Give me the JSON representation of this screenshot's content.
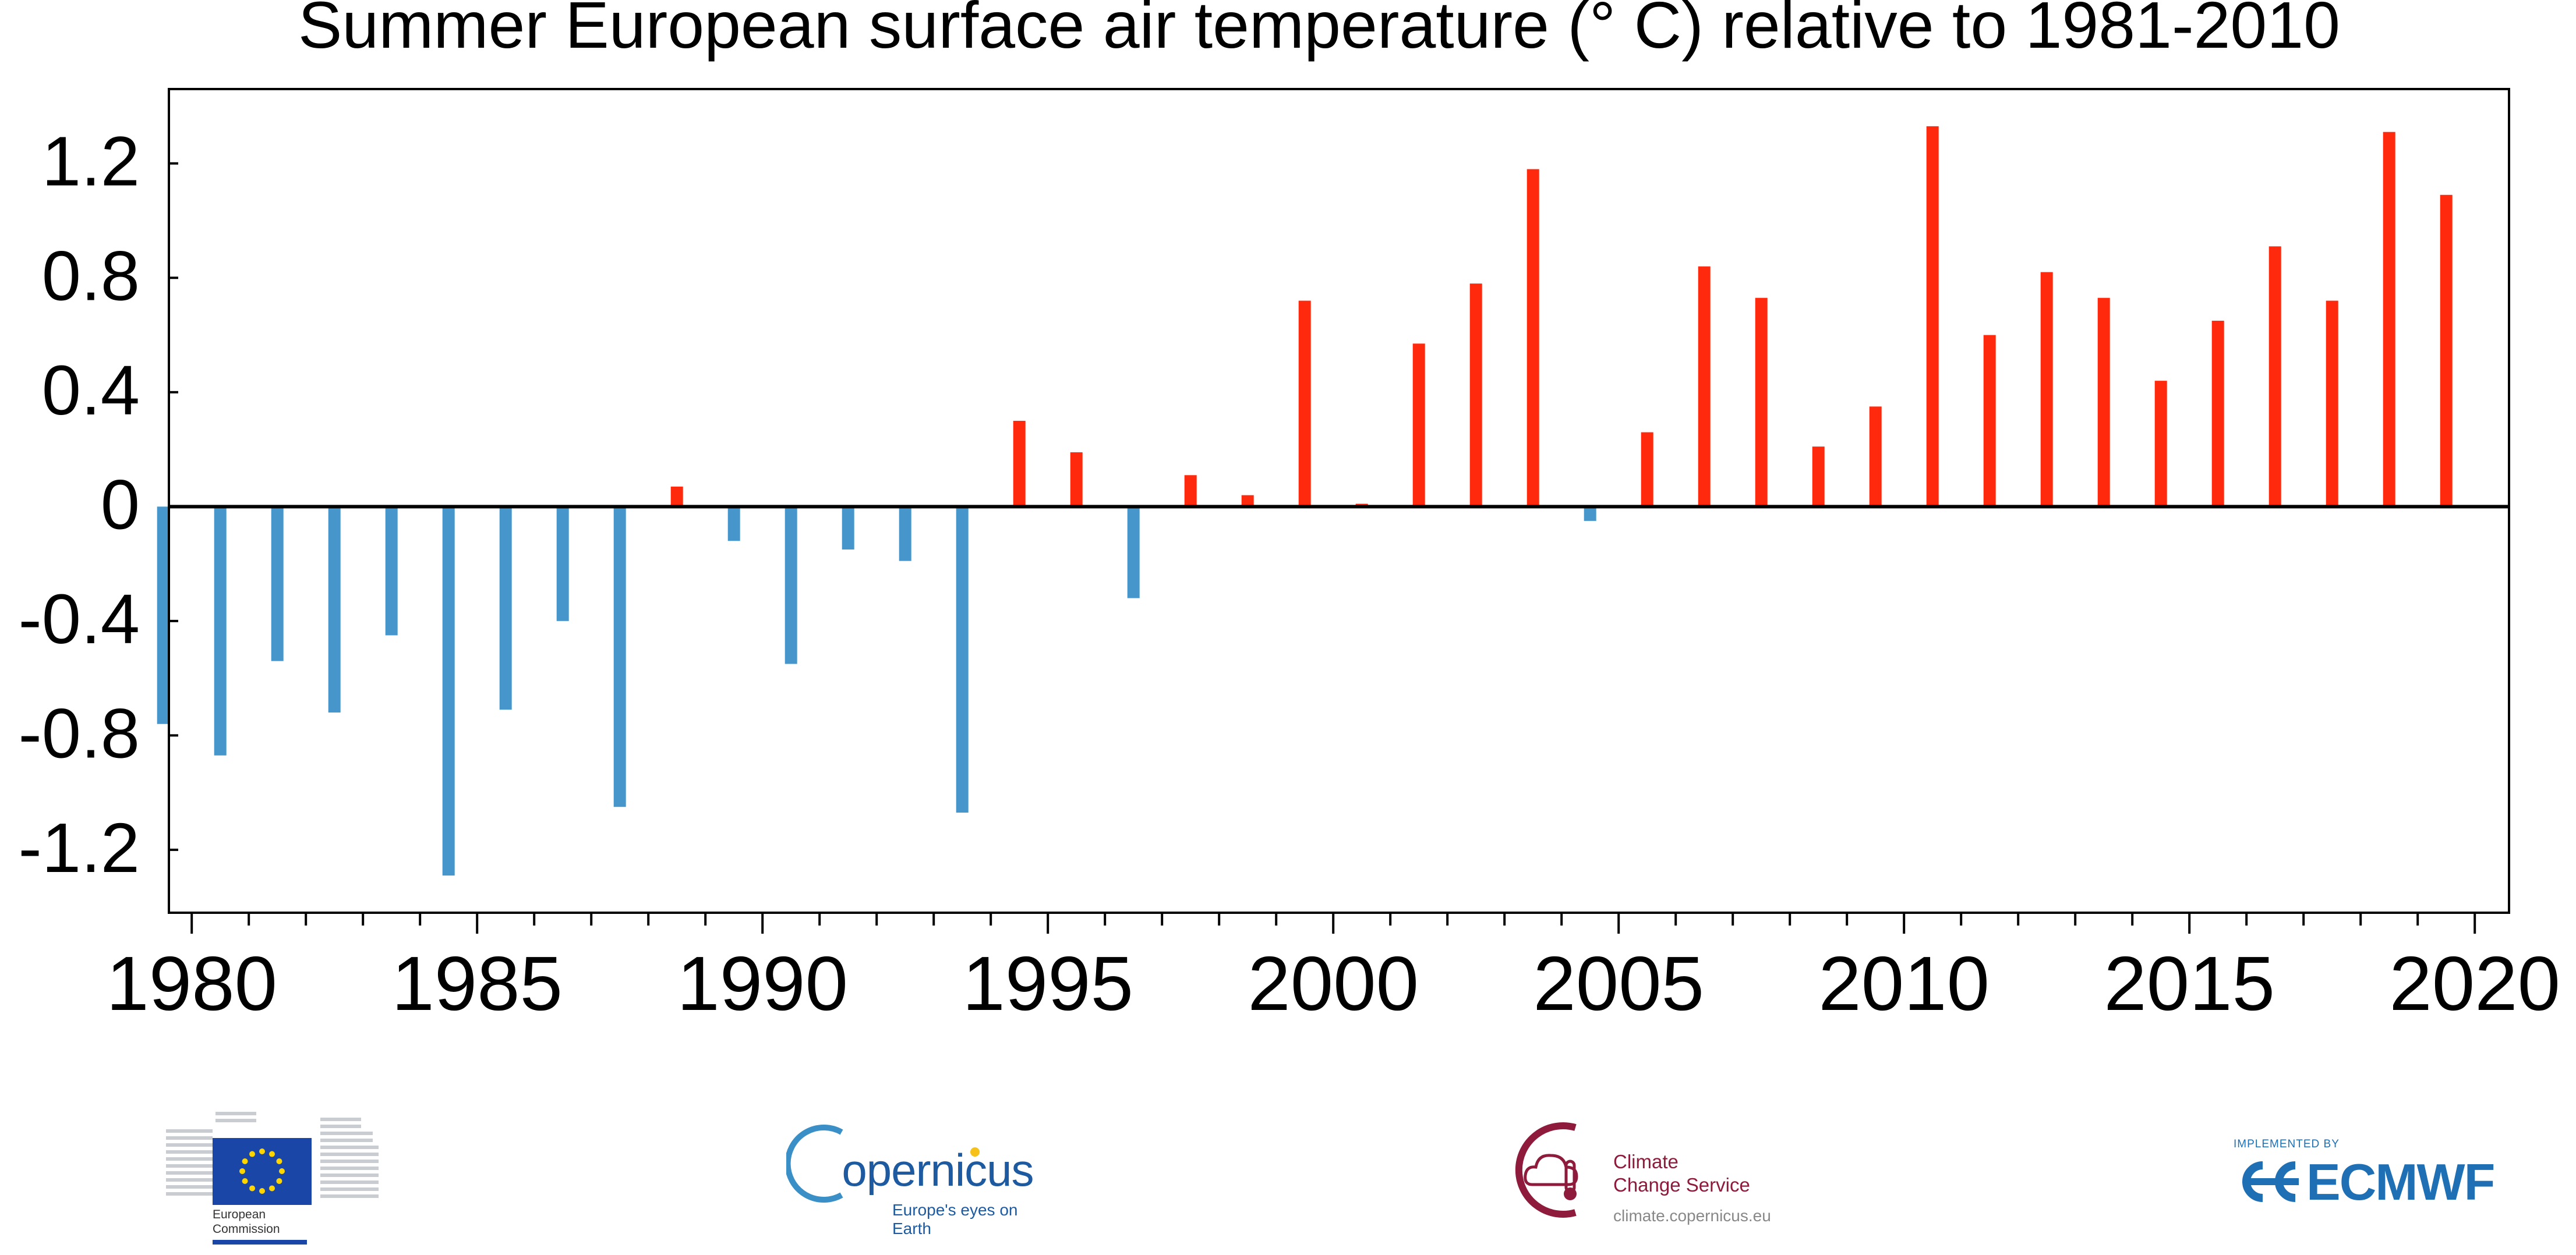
{
  "chart_data": {
    "type": "bar",
    "title": "Summer European surface air temperature (° C) relative to 1981-2010",
    "xlabel": "",
    "ylabel": "",
    "ylim": [
      -1.42,
      1.46
    ],
    "xlim": [
      1979.6,
      2020.6
    ],
    "grid": false,
    "y_ticks": [
      "1.2",
      "0.8",
      "0.4",
      "0",
      "-0.4",
      "-0.8",
      "-1.2"
    ],
    "x_ticks": [
      "1980",
      "1985",
      "1990",
      "1995",
      "2000",
      "2005",
      "2010",
      "2015",
      "2020"
    ],
    "colors": {
      "positive": "#ff2a0d",
      "negative": "#4696cc",
      "axis": "#000000"
    },
    "x": [
      1979,
      1980,
      1981,
      1982,
      1983,
      1984,
      1985,
      1986,
      1987,
      1988,
      1989,
      1990,
      1991,
      1992,
      1993,
      1994,
      1995,
      1996,
      1997,
      1998,
      1999,
      2000,
      2001,
      2002,
      2003,
      2004,
      2005,
      2006,
      2007,
      2008,
      2009,
      2010,
      2011,
      2012,
      2013,
      2014,
      2015,
      2016,
      2017,
      2018,
      2019
    ],
    "values": [
      -0.76,
      -0.87,
      -0.54,
      -0.72,
      -0.45,
      -1.29,
      -0.71,
      -0.4,
      -1.05,
      0.07,
      -0.12,
      -0.55,
      -0.15,
      -0.19,
      -1.07,
      0.3,
      0.19,
      -0.32,
      0.11,
      0.04,
      0.72,
      0.01,
      0.57,
      0.78,
      1.18,
      -0.05,
      0.26,
      0.84,
      0.73,
      0.21,
      0.35,
      1.33,
      0.6,
      0.82,
      0.73,
      0.44,
      0.65,
      0.91,
      0.72,
      1.31,
      1.09
    ]
  },
  "footer": {
    "ec": {
      "line1": "European",
      "line2": "Commission"
    },
    "copernicus": {
      "name": "opernicus",
      "initial": "C",
      "tagline": "Europe's eyes on Earth"
    },
    "c3s": {
      "line1": "Climate",
      "line2": "Change Service",
      "url": "climate.copernicus.eu"
    },
    "ecmwf": {
      "implemented": "IMPLEMENTED BY",
      "name": "ECMWF"
    }
  }
}
